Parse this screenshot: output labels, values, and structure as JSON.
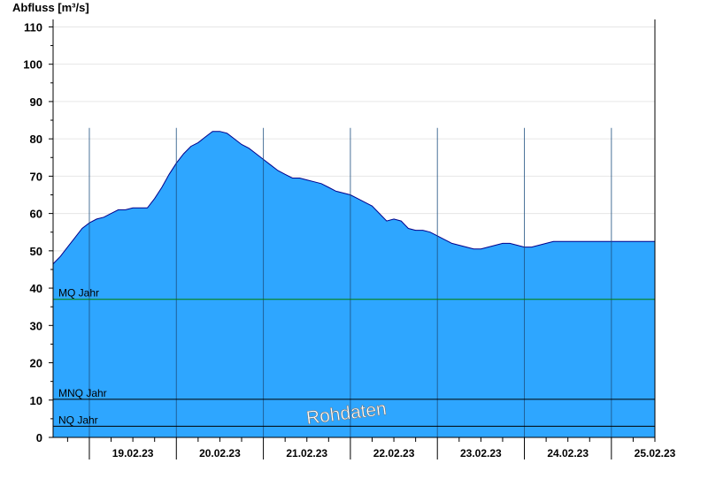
{
  "chart_data": {
    "type": "area",
    "ylabel": "Abfluss [m³/s]",
    "ylim": [
      0,
      112
    ],
    "yticks": [
      0,
      10,
      20,
      30,
      40,
      50,
      60,
      70,
      80,
      90,
      100,
      110
    ],
    "xlim": [
      "2023-02-18T14:00",
      "2023-02-25T12:00"
    ],
    "day_boundaries": [
      "19.02.23",
      "20.02.23",
      "21.02.23",
      "22.02.23",
      "23.02.23",
      "24.02.23",
      "25.02.23"
    ],
    "day_boundary_dates": [
      "2023-02-19",
      "2023-02-20",
      "2023-02-21",
      "2023-02-22",
      "2023-02-23",
      "2023-02-24",
      "2023-02-25"
    ],
    "xtick_labels": [
      "19.02.23",
      "20.02.23",
      "21.02.23",
      "22.02.23",
      "23.02.23",
      "24.02.23",
      "25.02.23"
    ],
    "fill_color": "#2ea6ff",
    "line_color": "#00008b",
    "grid": true,
    "series": [
      {
        "x": [
          "2023-02-18T14:00",
          "2023-02-18T16:00",
          "2023-02-18T18:00",
          "2023-02-18T20:00",
          "2023-02-18T22:00",
          "2023-02-19T00:00",
          "2023-02-19T02:00",
          "2023-02-19T04:00",
          "2023-02-19T06:00",
          "2023-02-19T08:00",
          "2023-02-19T10:00",
          "2023-02-19T12:00",
          "2023-02-19T14:00",
          "2023-02-19T16:00",
          "2023-02-19T18:00",
          "2023-02-19T20:00",
          "2023-02-19T22:00",
          "2023-02-20T00:00",
          "2023-02-20T02:00",
          "2023-02-20T04:00",
          "2023-02-20T06:00",
          "2023-02-20T08:00",
          "2023-02-20T10:00",
          "2023-02-20T12:00",
          "2023-02-20T14:00",
          "2023-02-20T16:00",
          "2023-02-20T18:00",
          "2023-02-20T20:00",
          "2023-02-20T22:00",
          "2023-02-21T00:00",
          "2023-02-21T02:00",
          "2023-02-21T04:00",
          "2023-02-21T06:00",
          "2023-02-21T08:00",
          "2023-02-21T10:00",
          "2023-02-21T12:00",
          "2023-02-21T14:00",
          "2023-02-21T16:00",
          "2023-02-21T18:00",
          "2023-02-21T20:00",
          "2023-02-21T22:00",
          "2023-02-22T00:00",
          "2023-02-22T02:00",
          "2023-02-22T04:00",
          "2023-02-22T06:00",
          "2023-02-22T08:00",
          "2023-02-22T10:00",
          "2023-02-22T12:00",
          "2023-02-22T14:00",
          "2023-02-22T16:00",
          "2023-02-22T18:00",
          "2023-02-22T20:00",
          "2023-02-22T22:00",
          "2023-02-23T00:00",
          "2023-02-23T02:00",
          "2023-02-23T04:00",
          "2023-02-23T06:00",
          "2023-02-23T08:00",
          "2023-02-23T10:00",
          "2023-02-23T12:00",
          "2023-02-23T14:00",
          "2023-02-23T16:00",
          "2023-02-23T18:00",
          "2023-02-23T20:00",
          "2023-02-23T22:00",
          "2023-02-24T00:00",
          "2023-02-24T02:00",
          "2023-02-24T04:00",
          "2023-02-24T06:00",
          "2023-02-24T08:00",
          "2023-02-24T10:00",
          "2023-02-24T12:00",
          "2023-02-24T14:00",
          "2023-02-24T16:00",
          "2023-02-24T18:00",
          "2023-02-24T20:00",
          "2023-02-24T22:00",
          "2023-02-25T00:00",
          "2023-02-25T02:00",
          "2023-02-25T04:00",
          "2023-02-25T06:00",
          "2023-02-25T08:00",
          "2023-02-25T10:00",
          "2023-02-25T12:00"
        ],
        "values": [
          46.5,
          48.5,
          51,
          53.5,
          56,
          57.5,
          58.5,
          59,
          60,
          61,
          61,
          61.5,
          61.5,
          61.5,
          64,
          67,
          70.5,
          73.5,
          76,
          78,
          79,
          80.5,
          82,
          82,
          81.5,
          80,
          78.5,
          77.5,
          76,
          74.5,
          73,
          71.5,
          70.5,
          69.5,
          69.5,
          69,
          68.5,
          68,
          67,
          66,
          65.5,
          65,
          64,
          63,
          62,
          60,
          58,
          58.5,
          58,
          56,
          55.5,
          55.5,
          55,
          54,
          53,
          52,
          51.5,
          51,
          50.5,
          50.5,
          51,
          51.5,
          52,
          52,
          51.5,
          51,
          51,
          51.5,
          52,
          52.5,
          52.5,
          52.5,
          52.5,
          52.5,
          52.5,
          52.5,
          52.5,
          52.5,
          52.5,
          52.5,
          52.5,
          52.5,
          52.5,
          52.5
        ]
      }
    ],
    "reference_lines": [
      {
        "label": "MQ Jahr",
        "value": 37,
        "color": "#008000"
      },
      {
        "label": "MNQ Jahr",
        "value": 10.2,
        "color": "#000000"
      },
      {
        "label": "NQ Jahr",
        "value": 3,
        "color": "#000000"
      }
    ],
    "watermark": "Rohdaten"
  }
}
